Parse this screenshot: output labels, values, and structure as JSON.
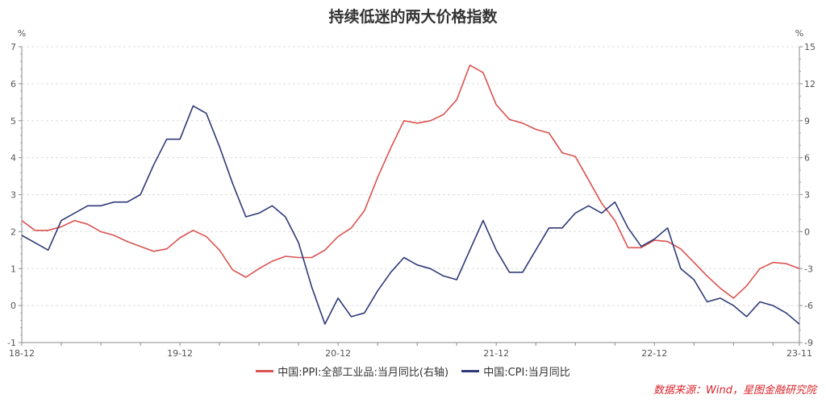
{
  "chart_title": "持续低迷的两大价格指数",
  "source": "数据来源：Wind，星图金融研究院",
  "left_axis": {
    "unit": "%",
    "min": -1,
    "max": 7,
    "ticks": [
      -1,
      0,
      1,
      2,
      3,
      4,
      5,
      6,
      7
    ]
  },
  "right_axis": {
    "unit": "%",
    "min": -9,
    "max": 15,
    "ticks": [
      -9,
      -6,
      -3,
      0,
      3,
      6,
      9,
      12,
      15
    ]
  },
  "legend": {
    "ppi": {
      "label": "中国:PPI:全部工业品:当月同比(右轴)",
      "color": "#d9534f"
    },
    "cpi": {
      "label": "中国:CPI:当月同比",
      "color": "#2e3a78"
    }
  },
  "chart_data": {
    "type": "line",
    "title": "持续低迷的两大价格指数",
    "xlabel": "",
    "ylabel_left": "%",
    "ylabel_right": "%",
    "x_tick_labels": [
      "18-12",
      "19-12",
      "20-12",
      "21-12",
      "22-12",
      "23-11"
    ],
    "x": [
      "18-12",
      "19-01",
      "19-02",
      "19-03",
      "19-04",
      "19-05",
      "19-06",
      "19-07",
      "19-08",
      "19-09",
      "19-10",
      "19-11",
      "19-12",
      "20-01",
      "20-02",
      "20-03",
      "20-04",
      "20-05",
      "20-06",
      "20-07",
      "20-08",
      "20-09",
      "20-10",
      "20-11",
      "20-12",
      "21-01",
      "21-02",
      "21-03",
      "21-04",
      "21-05",
      "21-06",
      "21-07",
      "21-08",
      "21-09",
      "21-10",
      "21-11",
      "21-12",
      "22-01",
      "22-02",
      "22-03",
      "22-04",
      "22-05",
      "22-06",
      "22-07",
      "22-08",
      "22-09",
      "22-10",
      "22-11",
      "22-12",
      "23-01",
      "23-02",
      "23-03",
      "23-04",
      "23-05",
      "23-06",
      "23-07",
      "23-08",
      "23-09",
      "23-10",
      "23-11"
    ],
    "series": [
      {
        "name": "中国:PPI:全部工业品:当月同比(右轴)",
        "axis": "right",
        "color": "#d9534f",
        "values": [
          0.9,
          0.1,
          0.1,
          0.4,
          0.9,
          0.6,
          0.0,
          -0.3,
          -0.8,
          -1.2,
          -1.6,
          -1.4,
          -0.5,
          0.1,
          -0.4,
          -1.5,
          -3.1,
          -3.7,
          -3.0,
          -2.4,
          -2.0,
          -2.1,
          -2.1,
          -1.5,
          -0.4,
          0.3,
          1.7,
          4.4,
          6.8,
          9.0,
          8.8,
          9.0,
          9.5,
          10.7,
          13.5,
          12.9,
          10.3,
          9.1,
          8.8,
          8.3,
          8.0,
          6.4,
          6.1,
          4.2,
          2.3,
          0.9,
          -1.3,
          -1.3,
          -0.7,
          -0.8,
          -1.4,
          -2.5,
          -3.6,
          -4.6,
          -5.4,
          -4.4,
          -3.0,
          -2.5,
          -2.6,
          -3.0
        ]
      },
      {
        "name": "中国:CPI:当月同比",
        "axis": "left",
        "color": "#2e3a78",
        "values": [
          1.9,
          1.7,
          1.5,
          2.3,
          2.5,
          2.7,
          2.7,
          2.8,
          2.8,
          3.0,
          3.8,
          4.5,
          4.5,
          5.4,
          5.2,
          4.3,
          3.3,
          2.4,
          2.5,
          2.7,
          2.4,
          1.7,
          0.5,
          -0.5,
          0.2,
          -0.3,
          -0.2,
          0.4,
          0.9,
          1.3,
          1.1,
          1.0,
          0.8,
          0.7,
          1.5,
          2.3,
          1.5,
          0.9,
          0.9,
          1.5,
          2.1,
          2.1,
          2.5,
          2.7,
          2.5,
          2.8,
          2.1,
          1.6,
          1.8,
          2.1,
          1.0,
          0.7,
          0.1,
          0.2,
          0.0,
          -0.3,
          0.1,
          0.0,
          -0.2,
          -0.5
        ]
      }
    ],
    "ylim_left": [
      -1,
      7
    ],
    "ylim_right": [
      -9,
      15
    ],
    "grid": true,
    "legend_position": "bottom"
  }
}
